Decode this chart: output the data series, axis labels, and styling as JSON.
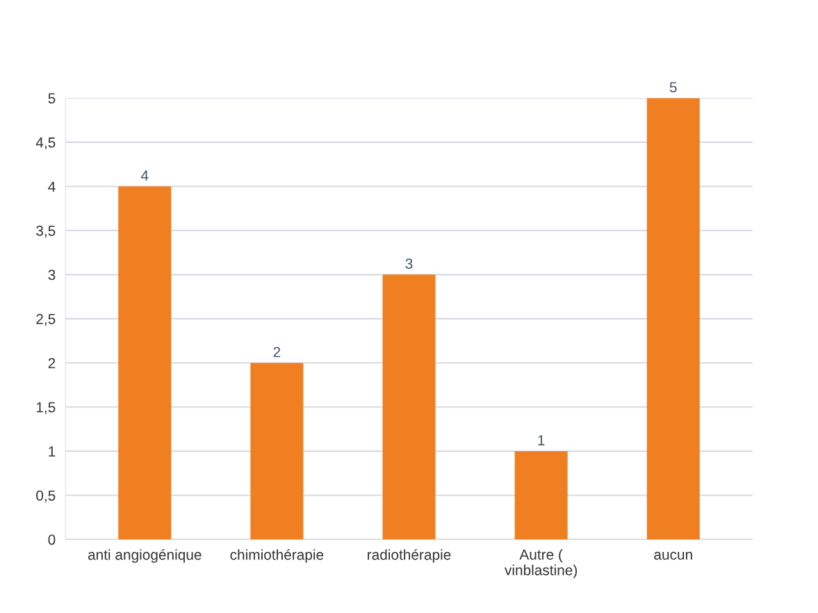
{
  "chart_data": {
    "type": "bar",
    "categories": [
      "anti angiogénique",
      "chimiothérapie",
      "radiothérapie",
      "Autre (\nvinblastine)",
      "aucun"
    ],
    "values": [
      4,
      2,
      3,
      1,
      5
    ],
    "color": "#f07f22",
    "ylim": [
      0,
      5
    ],
    "yticks": [
      0,
      {
        "value": 0.5,
        "label": "0,5"
      },
      1,
      {
        "value": 1.5,
        "label": "1,5"
      },
      2,
      {
        "value": 2.5,
        "label": "2,5"
      },
      3,
      {
        "value": 3.5,
        "label": "3,5"
      },
      4,
      {
        "value": 4.5,
        "label": "4,5"
      },
      5
    ],
    "grid": "y",
    "data_labels": true
  }
}
